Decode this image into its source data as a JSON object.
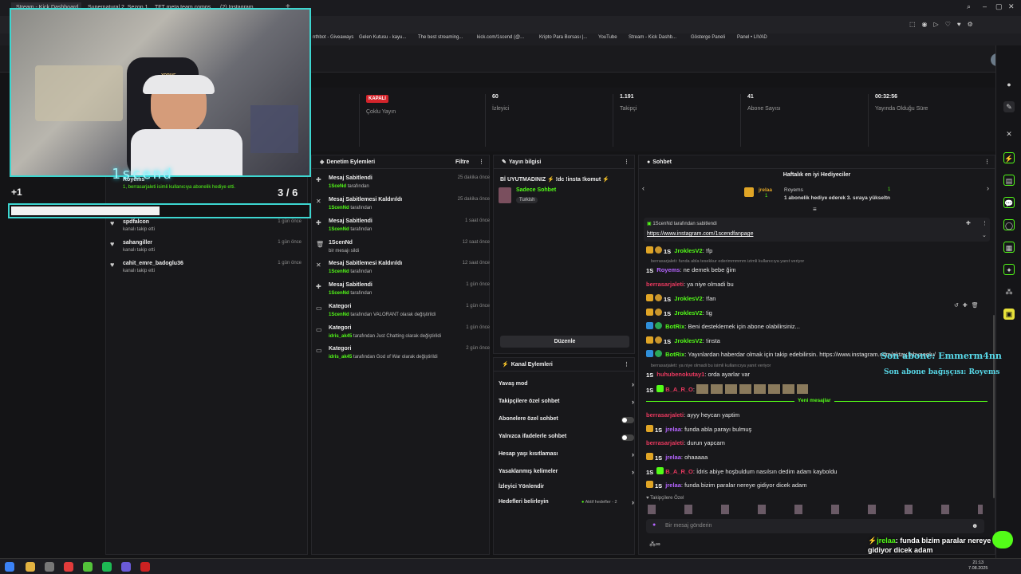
{
  "browser": {
    "tabs": [
      {
        "label": "Stream - Kick Dashboard"
      },
      {
        "label": "Supernatural 2. Sezon 18..."
      },
      {
        "label": "TFT meta team comps..."
      },
      {
        "label": "(2) Instagram"
      }
    ],
    "bookmarks": [
      "nthbot - Giveaways",
      "Gelen Kutusu - kayu...",
      "The best streaming...",
      "kick.com/1scend (@...",
      "Kripto Para Borsası |...",
      "YouTube",
      "Stream - Kick Dashb...",
      "Gösterge Paneli",
      "Panel • LIVAD"
    ]
  },
  "webcam": {
    "overlay_name": "1scend",
    "chair_brand": "XDRIVE",
    "count_left": "+1",
    "count_right": "3 / 6",
    "progress": 0.5
  },
  "stats": [
    {
      "value": "KAPALI",
      "label": "Çoklu Yayın"
    },
    {
      "value": "60",
      "label": "İzleyici"
    },
    {
      "value": "1.191",
      "label": "Takipçi"
    },
    {
      "value": "41",
      "label": "Abone Sayısı"
    },
    {
      "value": "00:32:56",
      "label": "Yayında Olduğu Süre"
    }
  ],
  "followers": {
    "top_partial": {
      "name": "Royems",
      "sub": "1, berrasarjaleti isimli kullanıcıya abonelik hediye etti."
    },
    "items": [
      {
        "name": "spdfalcon",
        "sub": "kanalı takip etti",
        "time": "1 gün önce"
      },
      {
        "name": "sahangiller",
        "sub": "kanalı takip etti",
        "time": "1 gün önce"
      },
      {
        "name": "cahit_emre_badoglu36",
        "sub": "kanalı takip etti",
        "time": "1 gün önce"
      }
    ]
  },
  "moderation": {
    "title": "Denetim Eylemleri",
    "filter": "Filtre",
    "items": [
      {
        "title": "Mesaj Sabitlendi",
        "user": "1SceNd",
        "rest": "tarafından",
        "time": "25 dakika önce"
      },
      {
        "title": "Mesaj Sabitlemesi Kaldırıldı",
        "user": "1ScenNd",
        "rest": "tarafından",
        "time": "25 dakika önce"
      },
      {
        "title": "Mesaj Sabitlendi",
        "user": "1ScenNd",
        "rest": "tarafından",
        "time": "1 saat önce"
      },
      {
        "title": "1ScenNd",
        "user": "",
        "rest": "bir mesajı sildi",
        "time": "12 saat önce"
      },
      {
        "title": "Mesaj Sabitlemesi Kaldırıldı",
        "user": "1ScenNd",
        "rest": "tarafından",
        "time": "12 saat önce"
      },
      {
        "title": "Mesaj Sabitlendi",
        "user": "1ScenNd",
        "rest": "tarafından",
        "time": "1 gün önce"
      },
      {
        "title": "Kategori",
        "user": "1ScenNd",
        "rest": "tarafından VALORANT olarak değiştirildi",
        "time": "1 gün önce"
      },
      {
        "title": "Kategori",
        "user": "idris_ak45",
        "rest": "tarafından Just Chatting olarak değiştirildi",
        "time": "1 gün önce"
      },
      {
        "title": "Kategori",
        "user": "idris_ak45",
        "rest": "tarafından God of War olarak değiştirildi",
        "time": "2 gün önce"
      }
    ]
  },
  "stream_info": {
    "title": "Yayın bilgisi",
    "stream_title": "Bİ UYUTMADINIZ ⚡ !dc !insta !komut ⚡",
    "mode": "Sadece Sohbet",
    "language": "Turkish",
    "edit_button": "Düzenle"
  },
  "channel_actions": {
    "title": "Kanal Eylemleri",
    "items": [
      {
        "label": "Yavaş mod",
        "type": "arrow"
      },
      {
        "label": "Takipçilere özel sohbet",
        "type": "arrow"
      },
      {
        "label": "Abonelere özel sohbet",
        "type": "toggle"
      },
      {
        "label": "Yalnızca ifadelerle sohbet",
        "type": "toggle"
      },
      {
        "label": "Hesap yaşı kısıtlaması",
        "type": "arrow"
      },
      {
        "label": "Yasaklanmış kelimeler",
        "type": "arrow"
      },
      {
        "label": "İzleyici Yönlendir",
        "type": "none"
      },
      {
        "label": "Hedefleri belirleyin",
        "type": "goal",
        "extra": "Aktif hedefler - 2"
      }
    ]
  },
  "chat": {
    "title": "Sohbet",
    "gifters_title": "Haftalık en iyi Hediyeciler",
    "gifters": [
      {
        "name": "jrelaa",
        "count": "1"
      },
      {
        "name": "Royems",
        "count": "1"
      }
    ],
    "gift_note": "1 abonelik hediye ederek 3. sıraya yükseltn",
    "pinned_by": "1ScenNd tarafından sabitlendi",
    "pinned_link": "https://www.instagram.com/1scendfanpage",
    "messages": [
      {
        "user": "JroklesV2",
        "text": "!fp",
        "color": "#53fc18"
      },
      {
        "note": "berrasarjaleti: funda abla tesekkur ederimmmmm izimli kullanıcıya yanıt veriyor"
      },
      {
        "user": "Royems",
        "text": "ne demek bebe ğim",
        "color": "#b565ff"
      },
      {
        "user": "berrasarjaleti",
        "text": "ya niye olmadi bu",
        "color": "#e9395f"
      },
      {
        "user": "JroklesV2",
        "text": "!fan",
        "color": "#53fc18"
      },
      {
        "user": "JroklesV2",
        "text": "!ig",
        "color": "#53fc18"
      },
      {
        "user": "BotRix",
        "text": "Beni desteklemek için abone olabilirsiniz...",
        "color": "#53fc18"
      },
      {
        "user": "JroklesV2",
        "text": "!insta",
        "color": "#53fc18"
      },
      {
        "user": "BotRix",
        "text": "Yayınlardan haberdar olmak için takip edebilirsin. https://www.instagram.com/oktay.fahvaeglu/",
        "color": "#53fc18"
      },
      {
        "note": "berrasarjaleti: ya niye olmadi bu isimli kullanıcıya yanıt veriyor"
      },
      {
        "user": "huhubenokutay1",
        "text": "orda ayarlar var",
        "color": "#e9395f"
      },
      {
        "user": "B_A_R_O",
        "text": "",
        "color": "#e9395f"
      },
      {
        "divider": "Yeni mesajlar"
      },
      {
        "user": "berrasarjaleti",
        "text": "ayyy heycan yaptim",
        "color": "#e9395f"
      },
      {
        "user": "jrelaa",
        "text": "funda abla parayı bulmuş",
        "color": "#b565ff"
      },
      {
        "user": "berrasarjaleti",
        "text": "durun yapcam",
        "color": "#e9395f"
      },
      {
        "user": "jrelaa",
        "text": "ohaaaaa",
        "color": "#b565ff"
      },
      {
        "user": "B_A_R_O",
        "text": "İdris abiye hoşbuldum nasılsın dedim adam kayboldu",
        "color": "#e9395f"
      },
      {
        "user": "jrelaa",
        "text": "funda bizim paralar nereye gidiyor dicek adam",
        "color": "#b565ff"
      }
    ],
    "followers_only": "Takipçilere Özel",
    "input_placeholder": "Bir mesaj gönderin",
    "overlay_lines": [
      "Son abone: Emmerm4nn",
      "Son abone bağışçısı: Royems"
    ],
    "overlay_message": {
      "user": "jrelaa",
      "text": ": funda bizim paralar nereye gidiyor dicek adam"
    }
  },
  "taskbar": {
    "time": "21:13",
    "date": "7.08.2025"
  }
}
